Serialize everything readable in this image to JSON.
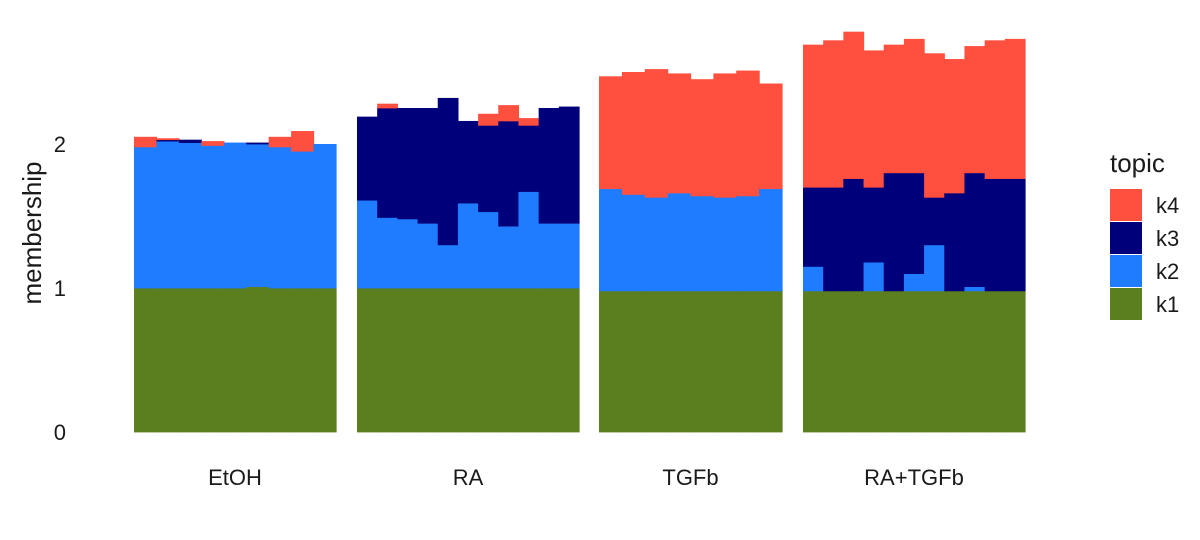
{
  "chart_data": {
    "type": "bar",
    "stacked": true,
    "title": "",
    "xlabel": "",
    "ylabel": "membership",
    "ylim": [
      0,
      2.9
    ],
    "yticks": [
      0,
      1,
      2
    ],
    "grid": false,
    "legend": {
      "title": "topic",
      "placement": "right",
      "order": [
        "k4",
        "k3",
        "k2",
        "k1"
      ]
    },
    "colors": {
      "k1": "#5b7f1f",
      "k2": "#1f7cff",
      "k3": "#00007a",
      "k4": "#ff4f3e"
    },
    "series_order": [
      "k1",
      "k2",
      "k3",
      "k4"
    ],
    "groups": [
      {
        "label": "EtOH",
        "bars": [
          {
            "k1": 1.0,
            "k2": 0.98,
            "k3": 0.0,
            "k4": 0.07
          },
          {
            "k1": 1.0,
            "k2": 1.02,
            "k3": 0.01,
            "k4": 0.01
          },
          {
            "k1": 1.0,
            "k2": 1.01,
            "k3": 0.02,
            "k4": 0.0
          },
          {
            "k1": 1.0,
            "k2": 0.99,
            "k3": 0.0,
            "k4": 0.03
          },
          {
            "k1": 1.0,
            "k2": 1.01,
            "k3": 0.0,
            "k4": 0.0
          },
          {
            "k1": 1.01,
            "k2": 0.99,
            "k3": 0.01,
            "k4": 0.0
          },
          {
            "k1": 1.0,
            "k2": 0.98,
            "k3": 0.0,
            "k4": 0.07
          },
          {
            "k1": 1.0,
            "k2": 0.95,
            "k3": 0.0,
            "k4": 0.14
          },
          {
            "k1": 1.0,
            "k2": 1.0,
            "k3": 0.0,
            "k4": 0.0
          }
        ]
      },
      {
        "label": "RA",
        "bars": [
          {
            "k1": 1.0,
            "k2": 0.61,
            "k3": 0.58,
            "k4": 0.0
          },
          {
            "k1": 1.0,
            "k2": 0.49,
            "k3": 0.76,
            "k4": 0.03
          },
          {
            "k1": 1.0,
            "k2": 0.48,
            "k3": 0.77,
            "k4": 0.0
          },
          {
            "k1": 1.0,
            "k2": 0.45,
            "k3": 0.8,
            "k4": 0.0
          },
          {
            "k1": 1.0,
            "k2": 0.3,
            "k3": 1.02,
            "k4": 0.0
          },
          {
            "k1": 1.0,
            "k2": 0.59,
            "k3": 0.57,
            "k4": 0.0
          },
          {
            "k1": 1.0,
            "k2": 0.53,
            "k3": 0.6,
            "k4": 0.08
          },
          {
            "k1": 1.0,
            "k2": 0.43,
            "k3": 0.73,
            "k4": 0.11
          },
          {
            "k1": 1.0,
            "k2": 0.67,
            "k3": 0.46,
            "k4": 0.05
          },
          {
            "k1": 1.0,
            "k2": 0.45,
            "k3": 0.8,
            "k4": 0.0
          },
          {
            "k1": 1.0,
            "k2": 0.45,
            "k3": 0.81,
            "k4": 0.0
          }
        ]
      },
      {
        "label": "TGFb",
        "bars": [
          {
            "k1": 0.98,
            "k2": 0.71,
            "k3": 0.0,
            "k4": 0.78
          },
          {
            "k1": 0.98,
            "k2": 0.67,
            "k3": 0.0,
            "k4": 0.85
          },
          {
            "k1": 0.98,
            "k2": 0.65,
            "k3": 0.0,
            "k4": 0.89
          },
          {
            "k1": 0.98,
            "k2": 0.68,
            "k3": 0.0,
            "k4": 0.83
          },
          {
            "k1": 0.98,
            "k2": 0.66,
            "k3": 0.0,
            "k4": 0.81
          },
          {
            "k1": 0.98,
            "k2": 0.65,
            "k3": 0.0,
            "k4": 0.86
          },
          {
            "k1": 0.98,
            "k2": 0.66,
            "k3": 0.0,
            "k4": 0.87
          },
          {
            "k1": 0.98,
            "k2": 0.71,
            "k3": 0.0,
            "k4": 0.73
          }
        ]
      },
      {
        "label": "RA+TGFb",
        "bars": [
          {
            "k1": 0.98,
            "k2": 0.17,
            "k3": 0.55,
            "k4": 0.99
          },
          {
            "k1": 0.98,
            "k2": 0.0,
            "k3": 0.72,
            "k4": 1.02
          },
          {
            "k1": 0.98,
            "k2": 0.0,
            "k3": 0.78,
            "k4": 1.02
          },
          {
            "k1": 0.98,
            "k2": 0.2,
            "k3": 0.52,
            "k4": 0.95
          },
          {
            "k1": 0.98,
            "k2": 0.0,
            "k3": 0.82,
            "k4": 0.89
          },
          {
            "k1": 0.98,
            "k2": 0.12,
            "k3": 0.7,
            "k4": 0.93
          },
          {
            "k1": 0.98,
            "k2": 0.32,
            "k3": 0.33,
            "k4": 1.0
          },
          {
            "k1": 0.98,
            "k2": 0.0,
            "k3": 0.68,
            "k4": 0.93
          },
          {
            "k1": 0.98,
            "k2": 0.03,
            "k3": 0.79,
            "k4": 0.88
          },
          {
            "k1": 0.98,
            "k2": 0.0,
            "k3": 0.78,
            "k4": 0.96
          },
          {
            "k1": 0.98,
            "k2": 0.0,
            "k3": 0.78,
            "k4": 0.97
          }
        ]
      }
    ]
  }
}
